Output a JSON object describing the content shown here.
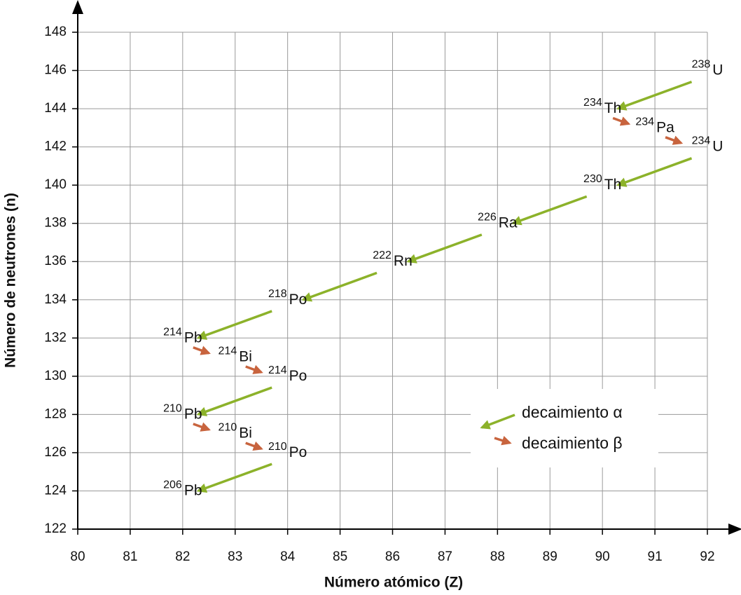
{
  "chart_data": {
    "type": "scatter",
    "x_label": "Número atómico (Z)",
    "y_label": "Número de neutrones (n)",
    "xlim": [
      80,
      92
    ],
    "xticks": [
      80,
      81,
      82,
      83,
      84,
      85,
      86,
      87,
      88,
      89,
      90,
      91,
      92
    ],
    "ylim": [
      122,
      148
    ],
    "yticks": [
      122,
      124,
      126,
      128,
      130,
      132,
      134,
      136,
      138,
      140,
      142,
      144,
      146,
      148
    ],
    "grid": true,
    "nuclides": {
      "x": [
        92,
        90,
        91,
        92,
        90,
        88,
        86,
        84,
        82,
        83,
        84,
        82,
        83,
        84,
        82
      ],
      "y": [
        146,
        144,
        143,
        142,
        140,
        138,
        136,
        134,
        132,
        131,
        130,
        128,
        127,
        126,
        124
      ],
      "mass": [
        "238",
        "234",
        "234",
        "234",
        "230",
        "226",
        "222",
        "218",
        "214",
        "214",
        "214",
        "210",
        "210",
        "210",
        "206"
      ],
      "symbol": [
        "U",
        "Th",
        "Pa",
        "U",
        "Th",
        "Ra",
        "Rn",
        "Po",
        "Pb",
        "Bi",
        "Po",
        "Pb",
        "Bi",
        "Po",
        "Pb"
      ]
    },
    "series": [
      {
        "name": "decaimiento α",
        "color": "#8cb22a"
      },
      {
        "name": "decaimiento β",
        "color": "#c8643e"
      }
    ]
  }
}
